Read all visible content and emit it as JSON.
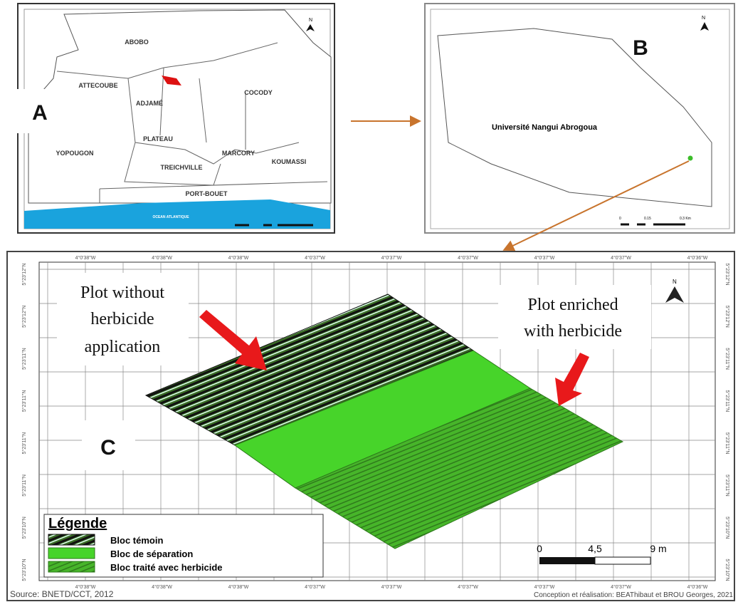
{
  "panel_a": {
    "letter": "A",
    "north": "N",
    "ocean": "OCEAN ATLANTIQUE",
    "districts": [
      "ABOBO",
      "ATTECOUBE",
      "ADJAMÉ",
      "COCODY",
      "PLATEAU",
      "YOPOUGON",
      "MARCORY",
      "KOUMASSI",
      "TREICHVILLE",
      "PORT-BOUET"
    ]
  },
  "panel_b": {
    "letter": "B",
    "north": "N",
    "place": "Université Nangui Abrogoua",
    "scale": [
      "0",
      "0.15",
      "0.3 Km"
    ]
  },
  "panel_c": {
    "letter": "C",
    "north": "N",
    "annotation_left": [
      "Plot without",
      "herbicide",
      "application"
    ],
    "annotation_right": [
      "Plot enriched",
      "with herbicide"
    ],
    "legend": {
      "title": "Légende",
      "items": [
        "Bloc témoin",
        "Bloc de séparation",
        "Bloc traité avec herbicide"
      ]
    },
    "scale": [
      "0",
      "4,5",
      "9 m"
    ],
    "lon_labels": [
      "4°0'38\"W",
      "4°0'38\"W",
      "4°0'38\"W",
      "4°0'37\"W",
      "4°0'37\"W",
      "4°0'37\"W",
      "4°0'37\"W",
      "4°0'37\"W",
      "4°0'36\"W"
    ],
    "lat_labels": [
      "5°23'12\"N",
      "5°23'12\"N",
      "5°23'11\"N",
      "5°23'11\"N",
      "5°23'11\"N",
      "5°23'11\"N",
      "5°23'10\"N",
      "5°23'10\"N"
    ],
    "source": "Source: BNETD/CCT, 2012",
    "credit": "Conception et réalisation: BEAThibaut et BROU Georges, 2021"
  }
}
